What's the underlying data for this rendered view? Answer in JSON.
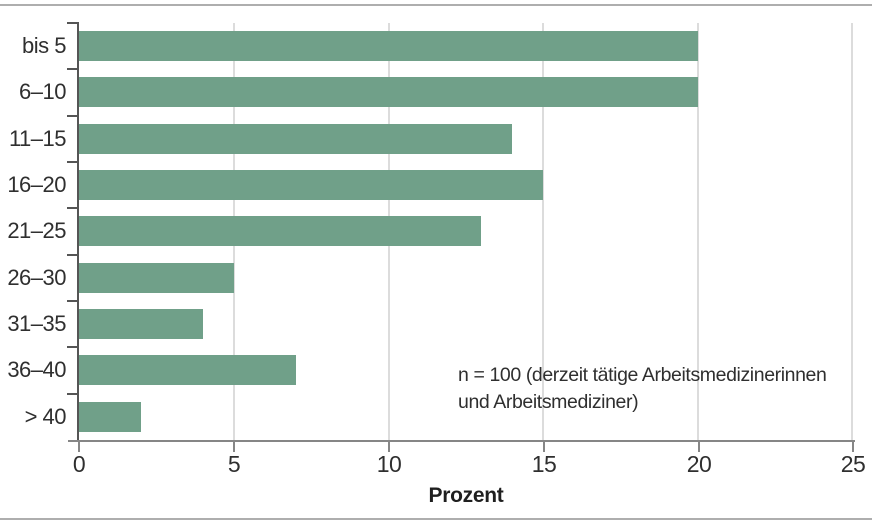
{
  "chart_data": {
    "type": "bar",
    "orientation": "horizontal",
    "categories": [
      "bis 5",
      "6–10",
      "11–15",
      "16–20",
      "21–25",
      "26–30",
      "31–35",
      "36–40",
      "> 40"
    ],
    "values": [
      20,
      20,
      14,
      15,
      13,
      5,
      4,
      7,
      2
    ],
    "title": "",
    "xlabel": "Prozent",
    "ylabel": "",
    "xlim": [
      0,
      25
    ],
    "x_ticks": [
      "0",
      "5",
      "10",
      "15",
      "20",
      "25"
    ],
    "grid": "vertical gridlines at 5, 10, 15, 20, 25",
    "legend": "none",
    "annotation": {
      "line1": "n = 100 (derzeit tätige Arbeitsmedizinerinnen",
      "line2": "und Arbeitsmediziner)"
    },
    "colors": {
      "bar": "#70a089",
      "gridline": "#dcdcdc",
      "y_axis": "#555555",
      "x_axis": "#868686",
      "text": "#2f2f2f",
      "frame_line": "#aeaeae"
    }
  }
}
